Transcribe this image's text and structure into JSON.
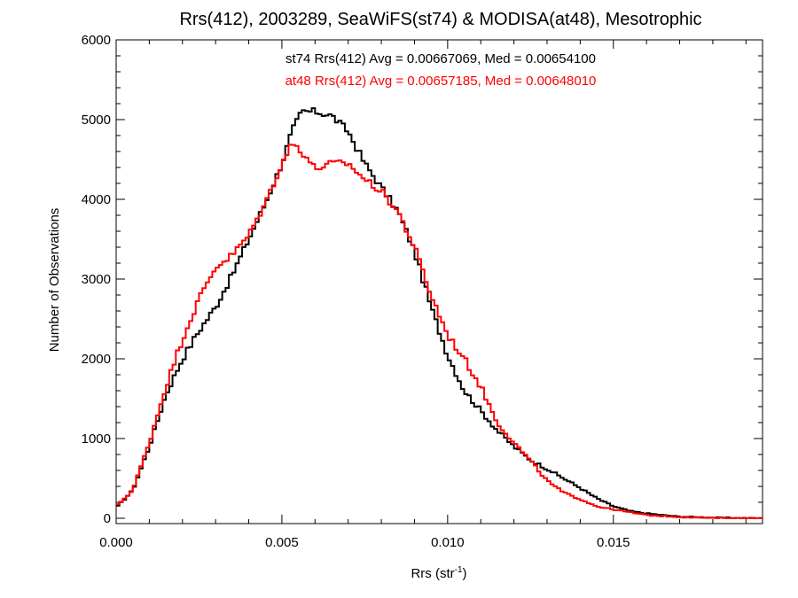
{
  "chart_data": {
    "type": "line",
    "step": true,
    "title": "Rrs(412), 2003289, SeaWiFS(st74) & MODISA(at48), Mesotrophic",
    "xlabel": "Rrs (str",
    "xlabel_sup": "-1",
    "xlabel_suffix": ")",
    "ylabel": "Number of Observations",
    "xlim": [
      0.0,
      0.0195
    ],
    "ylim": [
      0,
      6000
    ],
    "xticks": [
      0.0,
      0.005,
      0.01,
      0.015
    ],
    "xtick_labels": [
      "0.000",
      "0.005",
      "0.010",
      "0.015"
    ],
    "yticks": [
      0,
      1000,
      2000,
      3000,
      4000,
      5000,
      6000
    ],
    "ytick_labels": [
      "0",
      "1000",
      "2000",
      "3000",
      "4000",
      "5000",
      "6000"
    ],
    "grid": false,
    "annotations": [
      {
        "text": "st74 Rrs(412) Avg = 0.00667069, Med = 0.00654100",
        "color": "#000000"
      },
      {
        "text": "at48 Rrs(412) Avg = 0.00657185, Med = 0.00648010",
        "color": "#ff0000"
      }
    ],
    "series": [
      {
        "color": "#000000",
        "x": [
          0.0,
          0.0005,
          0.001,
          0.0015,
          0.002,
          0.0025,
          0.003,
          0.0035,
          0.004,
          0.0045,
          0.005,
          0.0053,
          0.0056,
          0.006,
          0.0065,
          0.007,
          0.0075,
          0.008,
          0.0085,
          0.009,
          0.0095,
          0.01,
          0.0105,
          0.011,
          0.0115,
          0.012,
          0.0125,
          0.013,
          0.0135,
          0.014,
          0.0145,
          0.015,
          0.0155,
          0.016,
          0.017,
          0.018,
          0.0195
        ],
        "y": [
          130,
          350,
          900,
          1550,
          2000,
          2350,
          2650,
          3050,
          3500,
          3950,
          4450,
          4850,
          5100,
          5100,
          5050,
          4850,
          4450,
          4150,
          3850,
          3350,
          2650,
          2050,
          1600,
          1350,
          1100,
          900,
          730,
          620,
          500,
          380,
          250,
          150,
          90,
          60,
          20,
          8,
          0
        ]
      },
      {
        "color": "#ff0000",
        "x": [
          0.0,
          0.0005,
          0.001,
          0.0015,
          0.002,
          0.0025,
          0.003,
          0.0035,
          0.004,
          0.0045,
          0.005,
          0.0053,
          0.0055,
          0.0058,
          0.006,
          0.0065,
          0.007,
          0.0075,
          0.008,
          0.0085,
          0.009,
          0.0095,
          0.01,
          0.0105,
          0.011,
          0.0115,
          0.012,
          0.0125,
          0.013,
          0.0135,
          0.014,
          0.0145,
          0.015,
          0.016,
          0.017,
          0.018,
          0.0195
        ],
        "y": [
          150,
          350,
          950,
          1650,
          2250,
          2750,
          3150,
          3300,
          3550,
          3950,
          4450,
          4700,
          4650,
          4500,
          4380,
          4450,
          4450,
          4250,
          4100,
          3850,
          3400,
          2800,
          2300,
          2000,
          1650,
          1200,
          950,
          720,
          470,
          320,
          240,
          150,
          110,
          40,
          15,
          5,
          0
        ]
      }
    ]
  }
}
